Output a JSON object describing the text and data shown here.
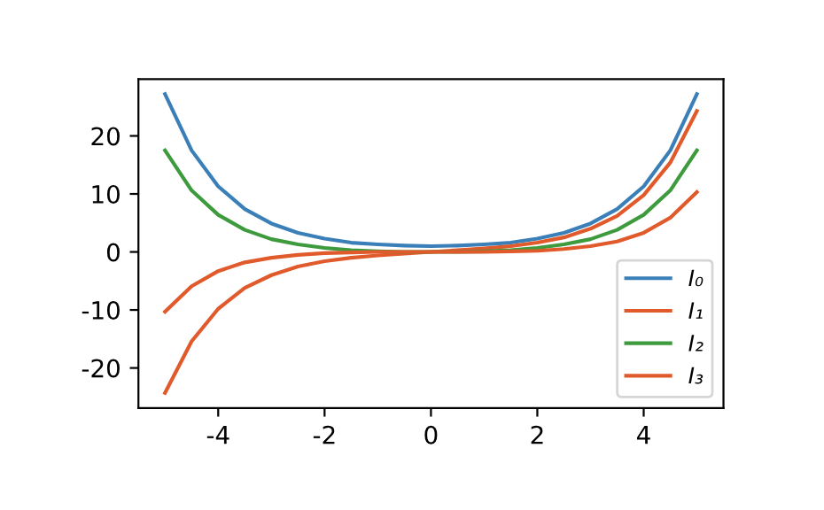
{
  "chart_data": {
    "type": "line",
    "x": [
      -5,
      -4.5,
      -4,
      -3.5,
      -3,
      -2.5,
      -2,
      -1.5,
      -1,
      -0.5,
      0,
      0.5,
      1,
      1.5,
      2,
      2.5,
      3,
      3.5,
      4,
      4.5,
      5
    ],
    "series": [
      {
        "name": "I₀",
        "color": "#3a7fb8",
        "values": [
          27.2,
          17.5,
          11.3,
          7.4,
          4.9,
          3.3,
          2.3,
          1.6,
          1.3,
          1.1,
          1,
          1.1,
          1.3,
          1.6,
          2.3,
          3.3,
          4.9,
          7.4,
          11.3,
          17.5,
          27.2
        ]
      },
      {
        "name": "I₁",
        "color": "#e05a2b",
        "values": [
          -24.3,
          -15.4,
          -9.8,
          -6.2,
          -4,
          -2.5,
          -1.6,
          -1,
          -0.6,
          -0.3,
          0,
          0.3,
          0.6,
          1,
          1.6,
          2.5,
          4,
          6.2,
          9.8,
          15.4,
          24.3
        ]
      },
      {
        "name": "I₂",
        "color": "#3d9a3d",
        "values": [
          17.5,
          10.6,
          6.4,
          3.8,
          2.2,
          1.3,
          0.7,
          0.3,
          0.1,
          0,
          0,
          0,
          0.1,
          0.3,
          0.7,
          1.3,
          2.2,
          3.8,
          6.4,
          10.6,
          17.5
        ]
      },
      {
        "name": "I₃",
        "color": "#e05a2b",
        "values": [
          -10.3,
          -5.9,
          -3.3,
          -1.8,
          -1,
          -0.5,
          -0.2,
          -0.1,
          0,
          0,
          0,
          0,
          0,
          0.1,
          0.2,
          0.5,
          1,
          1.8,
          3.3,
          5.9,
          10.3
        ]
      }
    ],
    "xlim": [
      -5.5,
      5.5
    ],
    "ylim": [
      -26.9,
      29.8
    ],
    "xticks": [
      -4,
      -2,
      0,
      2,
      4
    ],
    "yticks": [
      -20,
      -10,
      0,
      10,
      20
    ],
    "legend": "lower right",
    "grid": false
  }
}
